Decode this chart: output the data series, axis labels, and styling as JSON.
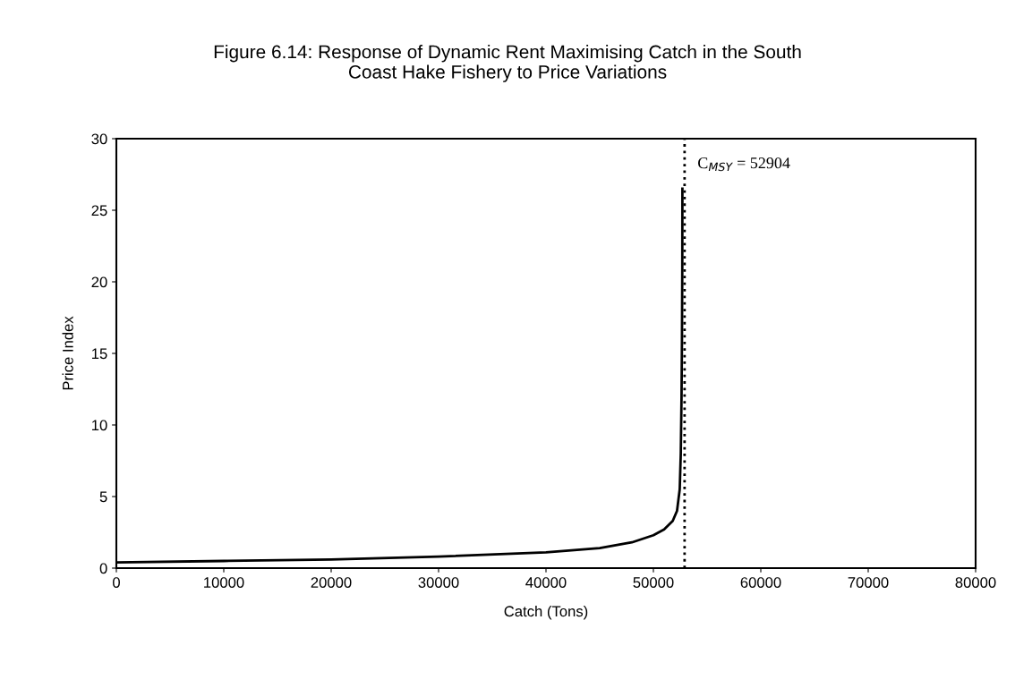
{
  "chart_data": {
    "type": "line",
    "title": "Figure 6.14: Response of Dynamic Rent Maximising Catch in the South\nCoast Hake Fishery to Price Variations",
    "xlabel": "Catch (Tons)",
    "ylabel": "Price Index",
    "xlim": [
      0,
      80000
    ],
    "xticks": [
      0,
      10000,
      20000,
      30000,
      40000,
      50000,
      60000,
      70000,
      80000
    ],
    "ylim": [
      0,
      30
    ],
    "yticks": [
      0,
      5,
      10,
      15,
      20,
      25,
      30
    ],
    "grid": false,
    "legend": false,
    "marker": "none",
    "line_style": "solid",
    "series": [
      {
        "color": "#000000",
        "x": [
          0,
          10000,
          20000,
          30000,
          40000,
          45000,
          48000,
          50000,
          51000,
          51800,
          52200,
          52450,
          52550,
          52620,
          52660,
          52690,
          52700
        ],
        "values": [
          0.4,
          0.5,
          0.6,
          0.8,
          1.1,
          1.4,
          1.8,
          2.3,
          2.7,
          3.3,
          4.0,
          5.5,
          8,
          12,
          16,
          21,
          26.5
        ]
      }
    ],
    "ref_lines": [
      {
        "axis": "x",
        "value": 52904,
        "label": "C$_{MSY}$ = 52904",
        "color": "#000000",
        "line_style": "dotted"
      }
    ]
  }
}
